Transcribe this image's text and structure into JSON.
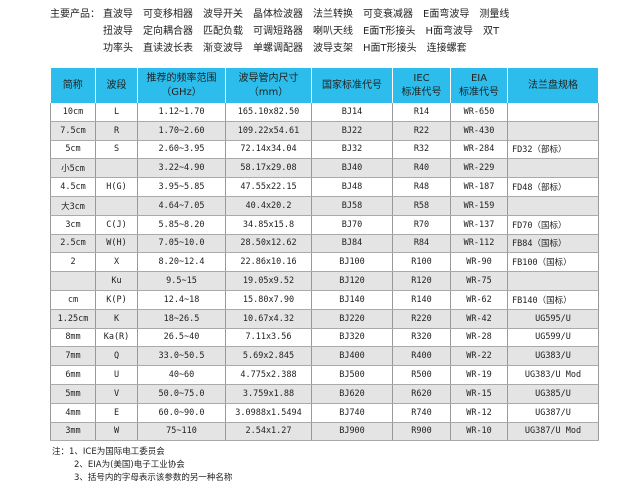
{
  "products": {
    "label": "主要产品：",
    "rows": [
      [
        "直波导",
        "可变移相器",
        "波导开关",
        "晶体检波器",
        "法兰转换",
        "可变衰减器",
        "E面弯波导",
        "测量线"
      ],
      [
        "扭波导",
        "定向耦合器",
        "匹配负载",
        "可调短路器",
        "喇叭天线",
        "E面T形接头",
        "H面弯波导",
        "双T"
      ],
      [
        "功率头",
        "直读波长表",
        "渐变波导",
        "单螺调配器",
        "波导支架",
        "H面T形接头",
        "连接螺套"
      ]
    ]
  },
  "table": {
    "headers": [
      {
        "l1": "简称",
        "l2": ""
      },
      {
        "l1": "波段",
        "l2": ""
      },
      {
        "l1": "推荐的频率范围",
        "l2": "（GHz）"
      },
      {
        "l1": "波导管内尺寸",
        "l2": "（mm）"
      },
      {
        "l1": "国家标准代号",
        "l2": ""
      },
      {
        "l1": "IEC",
        "l2": "标准代号"
      },
      {
        "l1": "EIA",
        "l2": "标准代号"
      },
      {
        "l1": "法兰盘规格",
        "l2": ""
      }
    ],
    "rows": [
      [
        "10cm",
        "L",
        "1.12~1.70",
        "165.10x82.50",
        "BJ14",
        "R14",
        "WR-650",
        ""
      ],
      [
        "7.5cm",
        "R",
        "1.70~2.60",
        "109.22x54.61",
        "BJ22",
        "R22",
        "WR-430",
        ""
      ],
      [
        "5cm",
        "S",
        "2.60~3.95",
        "72.14x34.04",
        "BJ32",
        "R32",
        "WR-284",
        "FD32（部标）"
      ],
      [
        "小5cm",
        "",
        "3.22~4.90",
        "58.17x29.08",
        "BJ40",
        "R40",
        "WR-229",
        ""
      ],
      [
        "4.5cm",
        "H(G)",
        "3.95~5.85",
        "47.55x22.15",
        "BJ48",
        "R48",
        "WR-187",
        "FD48（部标）"
      ],
      [
        "大3cm",
        "",
        "4.64~7.05",
        "40.4x20.2",
        "BJ58",
        "R58",
        "WR-159",
        ""
      ],
      [
        "3cm",
        "C(J)",
        "5.85~8.20",
        "34.85x15.8",
        "BJ70",
        "R70",
        "WR-137",
        "FD70（国标）"
      ],
      [
        "2.5cm",
        "W(H)",
        "7.05~10.0",
        "28.50x12.62",
        "BJ84",
        "R84",
        "WR-112",
        "FB84（国标）"
      ],
      [
        "2",
        "X",
        "8.20~12.4",
        "22.86x10.16",
        "BJ100",
        "R100",
        "WR-90",
        "FB100（国标）"
      ],
      [
        "",
        "Ku",
        "9.5~15",
        "19.05x9.52",
        "BJ120",
        "R120",
        "WR-75",
        ""
      ],
      [
        "cm",
        "K(P)",
        "12.4~18",
        "15.80x7.90",
        "BJ140",
        "R140",
        "WR-62",
        "FB140（国标）"
      ],
      [
        "1.25cm",
        "K",
        "18~26.5",
        "10.67x4.32",
        "BJ220",
        "R220",
        "WR-42",
        "UG595/U"
      ],
      [
        "8mm",
        "Ka(R)",
        "26.5~40",
        "7.11x3.56",
        "BJ320",
        "R320",
        "WR-28",
        "UG599/U"
      ],
      [
        "7mm",
        "Q",
        "33.0~50.5",
        "5.69x2.845",
        "BJ400",
        "R400",
        "WR-22",
        "UG383/U"
      ],
      [
        "6mm",
        "U",
        "40~60",
        "4.775x2.388",
        "BJ500",
        "R500",
        "WR-19",
        "UG383/U Mod"
      ],
      [
        "5mm",
        "V",
        "50.0~75.0",
        "3.759x1.88",
        "BJ620",
        "R620",
        "WR-15",
        "UG385/U"
      ],
      [
        "4mm",
        "E",
        "60.0~90.0",
        "3.0988x1.5494",
        "BJ740",
        "R740",
        "WR-12",
        "UG387/U"
      ],
      [
        "3mm",
        "W",
        "75~110",
        "2.54x1.27",
        "BJ900",
        "R900",
        "WR-10",
        "UG387/U Mod"
      ]
    ]
  },
  "notes": [
    "注：1、ICE为国际电工委员会",
    "2、EIA为(美国)电子工业协会",
    "3、括号内的字母表示该参数的另一种名称"
  ],
  "colors": {
    "header": "#2cbdec",
    "alt_row": "#e4e4e4"
  }
}
